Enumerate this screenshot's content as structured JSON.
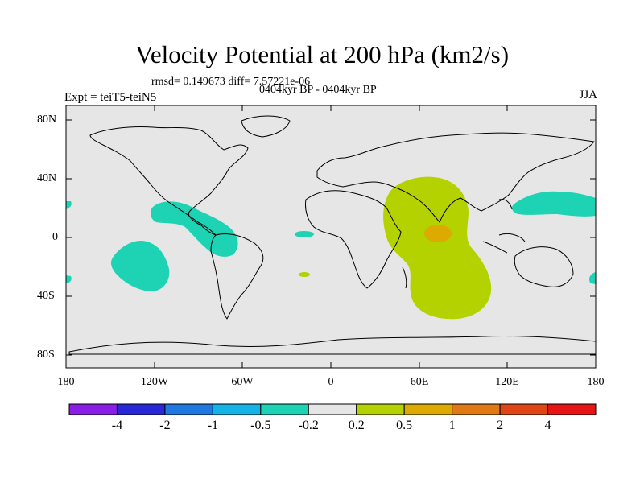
{
  "title": "Velocity Potential at 200 hPa (km2/s)",
  "stats": "rmsd= 0.149673 diff= 7.57221e-06",
  "expt": "Expt = teiT5-teiN5",
  "period": "0404kyr BP - 0404kyr BP",
  "season": "JJA",
  "axes": {
    "y_labels": [
      "80N",
      "40N",
      "0",
      "40S",
      "80S"
    ],
    "x_labels": [
      "180",
      "120W",
      "60W",
      "0",
      "60E",
      "120E",
      "180"
    ]
  },
  "colorbar": {
    "labels": [
      "-4",
      "-2",
      "-1",
      "-0.5",
      "-0.2",
      "0.2",
      "0.5",
      "1",
      "2",
      "4"
    ],
    "colors": [
      "#8a1ee6",
      "#2828d8",
      "#1e78e0",
      "#14b4e6",
      "#1ed2b4",
      "#e6e6e6",
      "#b4d200",
      "#dcaa00",
      "#e07814",
      "#e04614",
      "#e61414"
    ]
  },
  "regions": [
    {
      "name": "indian-ocean-positive",
      "level": "0.2 to 0.5"
    },
    {
      "name": "arabian-sea-maximum",
      "level": "0.5 to 1"
    },
    {
      "name": "central-america-negative",
      "level": "-0.5 to -0.2"
    },
    {
      "name": "south-pacific-negative",
      "level": "-0.5 to -0.2"
    },
    {
      "name": "west-pacific-negative",
      "level": "-0.5 to -0.2"
    }
  ],
  "colors": {
    "background": "#e6e6e6",
    "positive": "#b4d200",
    "positive_max": "#dcaa00",
    "negative": "#1ed2b4"
  }
}
